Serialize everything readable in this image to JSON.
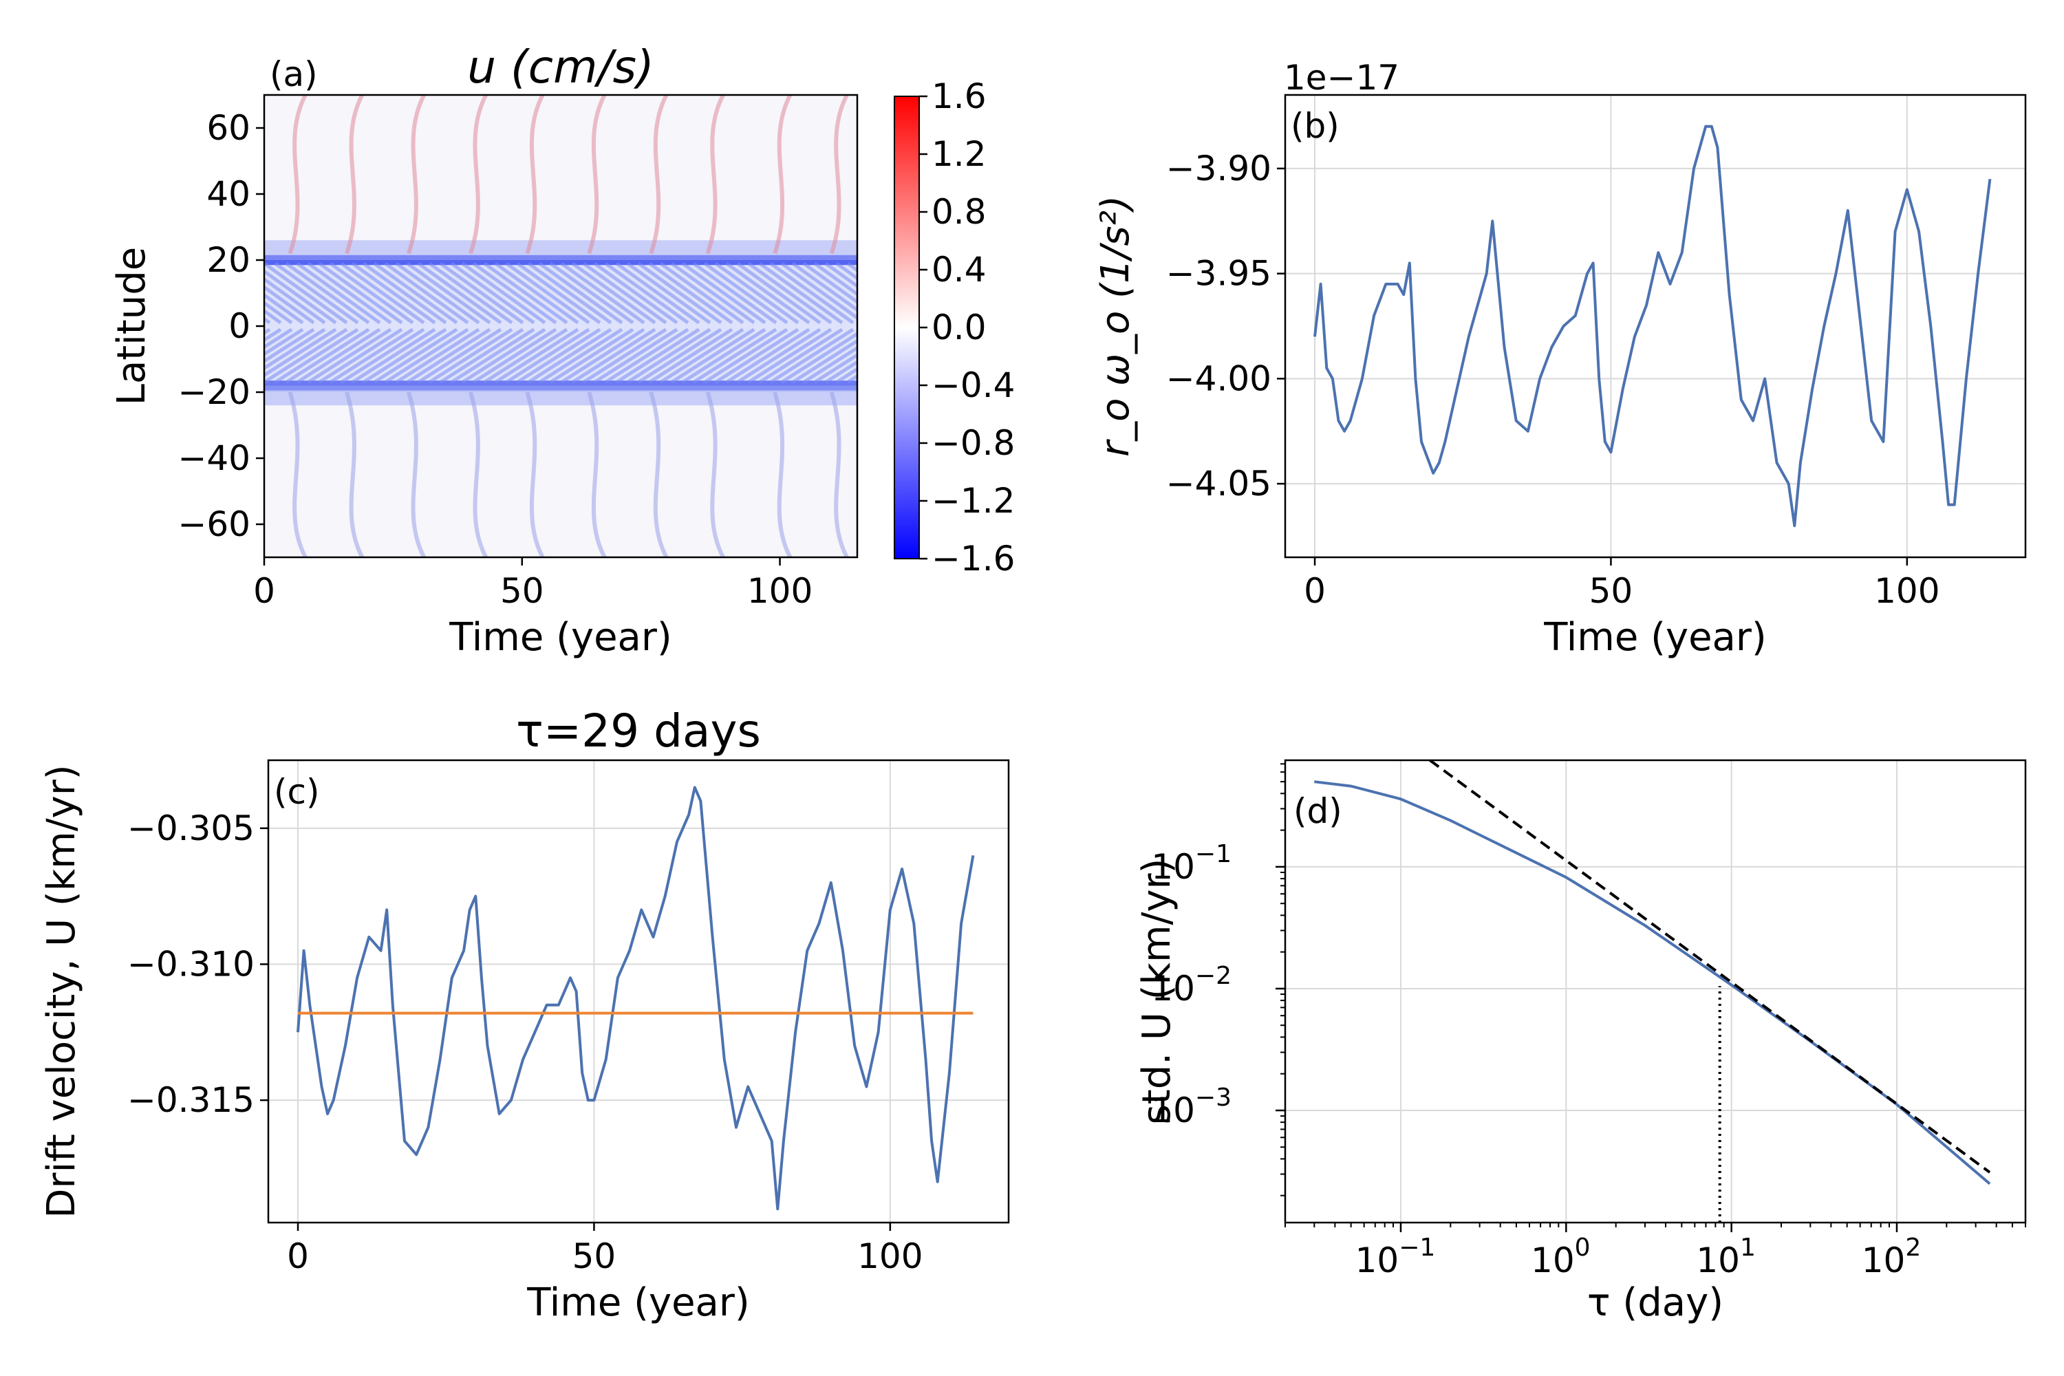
{
  "colors": {
    "line": "#4c72b0",
    "mean": "#ee8533",
    "frame": "#000000",
    "grid": "#d9d9d9"
  },
  "chart_data": [
    {
      "id": "a",
      "type": "heatmap",
      "panel_label": "(a)",
      "title": "u (cm/s)",
      "xlabel": "Time (year)",
      "ylabel": "Latitude",
      "xlim": [
        0,
        115
      ],
      "ylim": [
        -70,
        70
      ],
      "xticks": [
        "0",
        "50",
        "100"
      ],
      "yticks": [
        "60",
        "40",
        "20",
        "0",
        "−20",
        "−40",
        "−60"
      ],
      "colorbar": {
        "range": [
          -1.6,
          1.6
        ],
        "ticks": [
          "1.6",
          "1.2",
          "0.8",
          "0.4",
          "0.0",
          "−0.4",
          "−0.8",
          "−1.2",
          "−1.6"
        ],
        "colormap": "bwr"
      },
      "features": "Strong negative (blue) bands near ±20° latitude; chevron-shaped equatorward-propagating stripes between ±20°; poleward red/blue streaks at high latitudes with ~11-year recurrence"
    },
    {
      "id": "b",
      "type": "line",
      "panel_label": "(b)",
      "offset_text": "1e−17",
      "ylabel": "r_o ω_o (1/s²)",
      "xlabel": "Time (year)",
      "xlim": [
        -5,
        120
      ],
      "ylim": [
        -4.085,
        -3.865
      ],
      "xticks": [
        0,
        50,
        100
      ],
      "yticks": [
        -3.9,
        -3.95,
        -4.0,
        -4.05
      ],
      "ytick_labels": [
        "−3.90",
        "−3.95",
        "−4.00",
        "−4.05"
      ],
      "series": [
        {
          "name": "r_o ω_o",
          "x": [
            0,
            1,
            2,
            3,
            4,
            5,
            6,
            8,
            10,
            12,
            14,
            15,
            16,
            17,
            18,
            20,
            21,
            22,
            24,
            26,
            28,
            29,
            30,
            31,
            32,
            34,
            36,
            38,
            40,
            42,
            44,
            46,
            47,
            48,
            49,
            50,
            52,
            54,
            56,
            58,
            60,
            62,
            64,
            66,
            67,
            68,
            70,
            72,
            74,
            76,
            78,
            80,
            81,
            82,
            84,
            86,
            88,
            90,
            92,
            94,
            96,
            98,
            100,
            102,
            104,
            106,
            107,
            108,
            110,
            112,
            114
          ],
          "values": [
            -3.98,
            -3.955,
            -3.995,
            -4.0,
            -4.02,
            -4.025,
            -4.02,
            -4.0,
            -3.97,
            -3.955,
            -3.955,
            -3.96,
            -3.945,
            -4.0,
            -4.03,
            -4.045,
            -4.04,
            -4.03,
            -4.005,
            -3.98,
            -3.96,
            -3.95,
            -3.925,
            -3.955,
            -3.985,
            -4.02,
            -4.025,
            -4.0,
            -3.985,
            -3.975,
            -3.97,
            -3.95,
            -3.945,
            -4.0,
            -4.03,
            -4.035,
            -4.005,
            -3.98,
            -3.965,
            -3.94,
            -3.955,
            -3.94,
            -3.9,
            -3.88,
            -3.88,
            -3.89,
            -3.96,
            -4.01,
            -4.02,
            -4.0,
            -4.04,
            -4.05,
            -4.07,
            -4.04,
            -4.005,
            -3.975,
            -3.95,
            -3.92,
            -3.97,
            -4.02,
            -4.03,
            -3.93,
            -3.91,
            -3.93,
            -3.975,
            -4.03,
            -4.06,
            -4.06,
            -4.0,
            -3.95,
            -3.905
          ]
        }
      ]
    },
    {
      "id": "c",
      "type": "line",
      "panel_label": "(c)",
      "title": "τ=29 days",
      "ylabel": "Drift velocity, U (km/yr)",
      "xlabel": "Time (year)",
      "xlim": [
        -5,
        120
      ],
      "ylim": [
        -0.3195,
        -0.3025
      ],
      "xticks": [
        0,
        50,
        100
      ],
      "yticks": [
        -0.305,
        -0.31,
        -0.315
      ],
      "ytick_labels": [
        "−0.305",
        "−0.310",
        "−0.315"
      ],
      "series": [
        {
          "name": "U",
          "x": [
            0,
            1,
            2,
            3,
            4,
            5,
            6,
            8,
            10,
            12,
            14,
            15,
            16,
            17,
            18,
            20,
            21,
            22,
            24,
            26,
            28,
            29,
            30,
            31,
            32,
            34,
            36,
            38,
            40,
            42,
            44,
            46,
            47,
            48,
            49,
            50,
            52,
            54,
            56,
            58,
            60,
            62,
            64,
            66,
            67,
            68,
            70,
            72,
            74,
            76,
            78,
            80,
            81,
            82,
            84,
            86,
            88,
            90,
            92,
            94,
            96,
            98,
            100,
            102,
            104,
            106,
            107,
            108,
            110,
            112,
            114
          ],
          "values": [
            -0.3125,
            -0.3095,
            -0.3115,
            -0.313,
            -0.3145,
            -0.3155,
            -0.315,
            -0.313,
            -0.3105,
            -0.309,
            -0.3095,
            -0.308,
            -0.3115,
            -0.314,
            -0.3165,
            -0.317,
            -0.3165,
            -0.316,
            -0.3135,
            -0.3105,
            -0.3095,
            -0.308,
            -0.3075,
            -0.3105,
            -0.313,
            -0.3155,
            -0.315,
            -0.3135,
            -0.3125,
            -0.3115,
            -0.3115,
            -0.3105,
            -0.311,
            -0.314,
            -0.315,
            -0.315,
            -0.3135,
            -0.3105,
            -0.3095,
            -0.308,
            -0.309,
            -0.3075,
            -0.3055,
            -0.3045,
            -0.3035,
            -0.304,
            -0.309,
            -0.3135,
            -0.316,
            -0.3145,
            -0.3155,
            -0.3165,
            -0.319,
            -0.3165,
            -0.3125,
            -0.3095,
            -0.3085,
            -0.307,
            -0.3095,
            -0.313,
            -0.3145,
            -0.3125,
            -0.308,
            -0.3065,
            -0.3085,
            -0.3135,
            -0.3165,
            -0.318,
            -0.314,
            -0.3085,
            -0.306
          ]
        },
        {
          "name": "mean",
          "x": [
            0,
            114
          ],
          "values": [
            -0.3118,
            -0.3118
          ]
        }
      ]
    },
    {
      "id": "d",
      "type": "line",
      "scale": "log-log",
      "panel_label": "(d)",
      "ylabel": "std. U (km/yr)",
      "xlabel": "τ (day)",
      "xlim": [
        0.02,
        600
      ],
      "ylim": [
        0.00012,
        0.75
      ],
      "xticks": [
        0.1,
        1,
        10,
        100
      ],
      "xtick_labels": [
        [
          "10",
          "−1"
        ],
        [
          "10",
          "0"
        ],
        [
          "10",
          "1"
        ],
        [
          "10",
          "2"
        ]
      ],
      "yticks": [
        0.1,
        0.01,
        0.001
      ],
      "ytick_labels": [
        [
          "10",
          "−1"
        ],
        [
          "10",
          "−2"
        ],
        [
          "10",
          "−3"
        ]
      ],
      "series": [
        {
          "name": "std. U",
          "x": [
            0.03,
            0.05,
            0.1,
            0.2,
            0.5,
            1,
            3,
            10,
            30,
            100,
            365
          ],
          "values": [
            0.5,
            0.46,
            0.36,
            0.24,
            0.13,
            0.082,
            0.033,
            0.0107,
            0.0037,
            0.00112,
            0.00025
          ]
        },
        {
          "name": "reference slope",
          "style": "dashed",
          "x": [
            0.15,
            365
          ],
          "values": [
            0.75,
            0.00031
          ]
        },
        {
          "name": "tau marker",
          "style": "dotted",
          "x": [
            8.5,
            8.5
          ],
          "values": [
            0.00012,
            0.0105
          ]
        }
      ]
    }
  ]
}
